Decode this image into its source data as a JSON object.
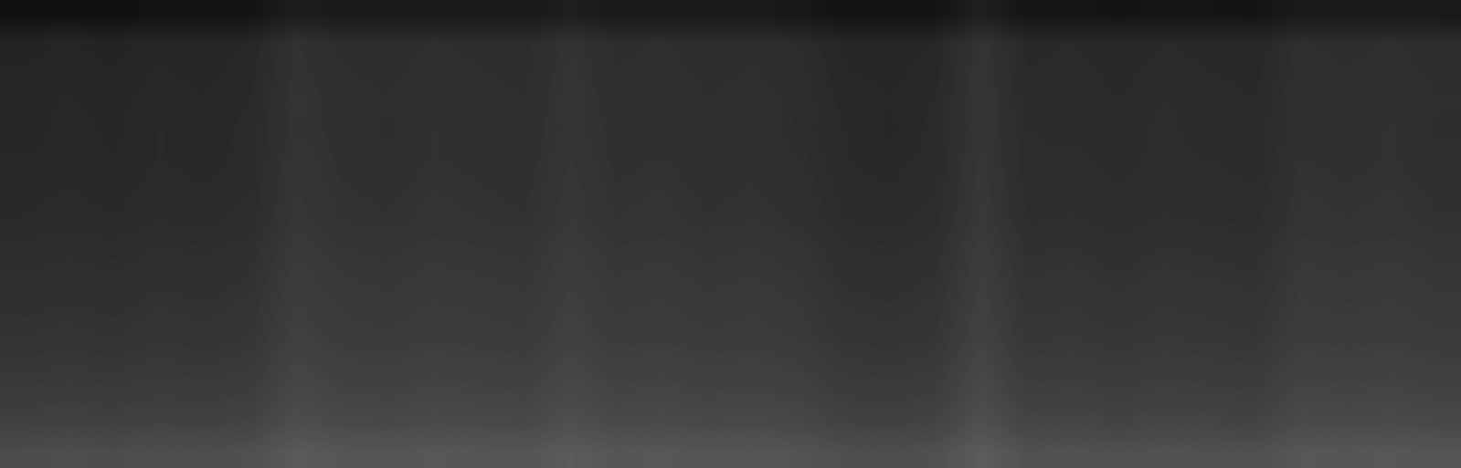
{
  "chart_data": {
    "type": "heatmap",
    "tick_labels": false,
    "color": "gray",
    "zlim": [
      0,
      255
    ],
    "cells": [
      [
        17,
        18,
        17,
        19,
        18,
        20,
        30,
        26,
        25,
        27,
        26,
        25,
        31,
        26,
        27,
        25,
        26,
        24,
        19,
        18,
        20,
        32,
        21,
        22,
        20,
        22,
        21,
        20,
        27,
        26,
        27,
        25
      ],
      [
        37,
        38,
        37,
        39,
        38,
        40,
        50,
        46,
        45,
        47,
        46,
        45,
        51,
        46,
        47,
        45,
        46,
        44,
        39,
        38,
        40,
        52,
        41,
        42,
        40,
        42,
        41,
        40,
        47,
        46,
        47,
        45
      ],
      [
        38,
        39,
        38,
        40,
        39,
        41,
        51,
        47,
        46,
        48,
        47,
        46,
        52,
        47,
        48,
        46,
        47,
        45,
        40,
        39,
        41,
        53,
        42,
        43,
        41,
        43,
        42,
        41,
        48,
        47,
        48,
        46
      ],
      [
        39,
        40,
        39,
        41,
        40,
        42,
        52,
        48,
        47,
        49,
        48,
        47,
        53,
        48,
        49,
        47,
        48,
        46,
        41,
        40,
        42,
        54,
        43,
        44,
        42,
        44,
        43,
        42,
        49,
        48,
        49,
        47
      ],
      [
        38,
        41,
        39,
        42,
        40,
        43,
        51,
        49,
        46,
        50,
        47,
        48,
        52,
        49,
        48,
        47,
        49,
        45,
        42,
        39,
        43,
        53,
        44,
        43,
        42,
        45,
        42,
        43,
        48,
        49,
        50,
        46
      ],
      [
        40,
        41,
        40,
        42,
        41,
        43,
        53,
        49,
        48,
        50,
        49,
        48,
        54,
        49,
        50,
        48,
        49,
        47,
        42,
        41,
        43,
        55,
        44,
        45,
        43,
        45,
        44,
        43,
        50,
        49,
        50,
        48
      ],
      [
        41,
        42,
        41,
        43,
        42,
        44,
        54,
        50,
        49,
        51,
        50,
        49,
        55,
        50,
        51,
        49,
        50,
        48,
        43,
        42,
        44,
        56,
        45,
        46,
        44,
        46,
        45,
        44,
        51,
        50,
        51,
        49
      ],
      [
        42,
        43,
        42,
        44,
        43,
        45,
        55,
        51,
        50,
        52,
        51,
        50,
        56,
        51,
        52,
        50,
        51,
        49,
        44,
        43,
        45,
        57,
        46,
        47,
        45,
        47,
        46,
        45,
        52,
        51,
        52,
        50
      ],
      [
        45,
        46,
        45,
        47,
        46,
        48,
        58,
        54,
        53,
        55,
        54,
        53,
        59,
        54,
        55,
        53,
        54,
        52,
        47,
        46,
        48,
        60,
        49,
        50,
        48,
        50,
        49,
        48,
        55,
        54,
        55,
        53
      ],
      [
        47,
        48,
        47,
        49,
        48,
        50,
        60,
        56,
        55,
        57,
        56,
        55,
        61,
        56,
        57,
        55,
        56,
        54,
        49,
        48,
        50,
        62,
        51,
        52,
        50,
        52,
        51,
        50,
        57,
        56,
        57,
        55
      ],
      [
        49,
        50,
        49,
        51,
        50,
        52,
        62,
        58,
        57,
        59,
        58,
        57,
        63,
        58,
        59,
        57,
        58,
        56,
        51,
        50,
        52,
        64,
        53,
        54,
        52,
        54,
        53,
        52,
        59,
        58,
        59,
        57
      ],
      [
        51,
        52,
        51,
        53,
        52,
        54,
        64,
        60,
        59,
        61,
        60,
        59,
        65,
        60,
        61,
        59,
        60,
        58,
        53,
        52,
        54,
        66,
        55,
        56,
        54,
        56,
        55,
        54,
        61,
        60,
        61,
        59
      ],
      [
        55,
        56,
        55,
        57,
        56,
        58,
        68,
        64,
        63,
        65,
        64,
        63,
        69,
        64,
        65,
        63,
        64,
        62,
        57,
        56,
        58,
        70,
        59,
        60,
        58,
        60,
        59,
        58,
        65,
        64,
        65,
        63
      ],
      [
        59,
        60,
        59,
        61,
        60,
        62,
        72,
        68,
        67,
        69,
        68,
        67,
        73,
        68,
        69,
        67,
        68,
        66,
        61,
        60,
        62,
        74,
        63,
        64,
        62,
        64,
        63,
        62,
        69,
        68,
        69,
        67
      ],
      [
        65,
        66,
        65,
        67,
        66,
        68,
        78,
        74,
        73,
        75,
        74,
        73,
        79,
        74,
        75,
        73,
        74,
        72,
        67,
        66,
        68,
        80,
        69,
        70,
        68,
        70,
        69,
        68,
        75,
        74,
        75,
        73
      ],
      [
        77,
        78,
        77,
        79,
        78,
        80,
        90,
        86,
        85,
        87,
        86,
        85,
        91,
        86,
        87,
        85,
        86,
        84,
        79,
        78,
        80,
        92,
        81,
        82,
        80,
        82,
        81,
        80,
        87,
        86,
        87,
        85
      ]
    ]
  }
}
